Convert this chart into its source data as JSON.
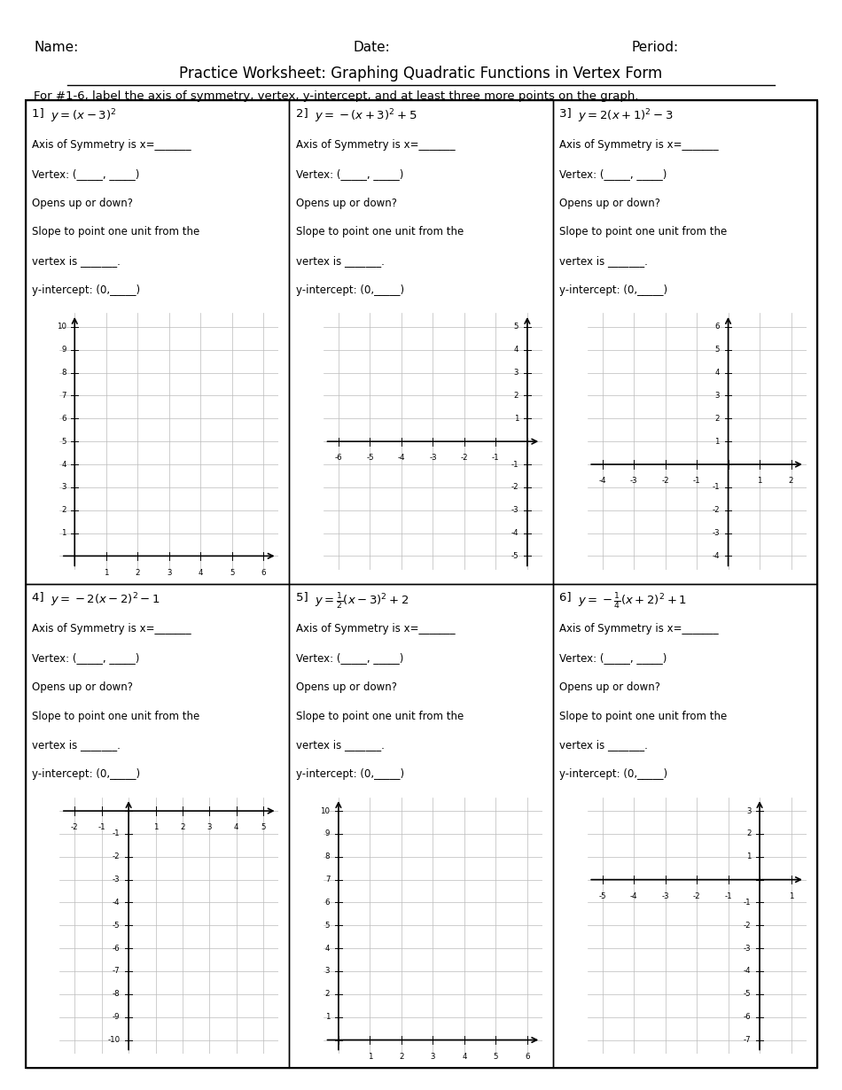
{
  "title": "Practice Worksheet: Graphing Quadratic Functions in Vertex Form",
  "header_line": "For #1-6, label the axis of symmetry, vertex, y-intercept, and at least three more points on the graph.",
  "name_label": "Name:",
  "date_label": "Date:",
  "period_label": "Period:",
  "problems": [
    {
      "number": "1]",
      "eq_plain": "y = (x - 3)",
      "eq_math": "y = (x-3)^2",
      "lines": [
        "Axis of Symmetry is x=_______",
        "Vertex: (_____, _____)",
        "Opens up or down?",
        "Slope to point one unit from the",
        "vertex is _______.  ",
        "y-intercept: (0,_____)"
      ],
      "xmin": 0,
      "xmax": 6,
      "ymin": 0,
      "ymax": 10,
      "xticks": [
        0,
        1,
        2,
        3,
        4,
        5,
        6
      ],
      "yticks": [
        0,
        1,
        2,
        3,
        4,
        5,
        6,
        7,
        8,
        9,
        10
      ]
    },
    {
      "number": "2]",
      "eq_plain": "y = -(x + 3) + 5",
      "eq_math": "y = -(x+3)^2 + 5",
      "lines": [
        "Axis of Symmetry is x=_______",
        "Vertex: (_____, _____)",
        "Opens up or down?",
        "Slope to point one unit from the",
        "vertex is _______.  ",
        "y-intercept: (0,_____)"
      ],
      "xmin": -6,
      "xmax": 0,
      "ymin": -5,
      "ymax": 5,
      "xticks": [
        -6,
        -5,
        -4,
        -3,
        -2,
        -1,
        0
      ],
      "yticks": [
        -5,
        -4,
        -3,
        -2,
        -1,
        0,
        1,
        2,
        3,
        4,
        5
      ]
    },
    {
      "number": "3]",
      "eq_plain": "y = 2(x + 1) - 3",
      "eq_math": "y = 2(x+1)^2 - 3",
      "lines": [
        "Axis of Symmetry is x=_______",
        "Vertex: (_____, _____)",
        "Opens up or down?",
        "Slope to point one unit from the",
        "vertex is _______.  ",
        "y-intercept: (0,_____)"
      ],
      "xmin": -4,
      "xmax": 2,
      "ymin": -4,
      "ymax": 6,
      "xticks": [
        -4,
        -3,
        -2,
        -1,
        0,
        1,
        2
      ],
      "yticks": [
        -4,
        -3,
        -2,
        -1,
        0,
        1,
        2,
        3,
        4,
        5,
        6
      ]
    },
    {
      "number": "4]",
      "eq_plain": "y = -2(x - 2) - 1",
      "eq_math": "y = -2(x-2)^2 - 1",
      "lines": [
        "Axis of Symmetry is x=_______",
        "Vertex: (_____, _____)",
        "Opens up or down?",
        "Slope to point one unit from the",
        "vertex is _______.  ",
        "y-intercept: (0,_____)"
      ],
      "xmin": -2,
      "xmax": 5,
      "ymin": -10,
      "ymax": 0,
      "xticks": [
        -2,
        -1,
        0,
        1,
        2,
        3,
        4,
        5
      ],
      "yticks": [
        -10,
        -9,
        -8,
        -7,
        -6,
        -5,
        -4,
        -3,
        -2,
        -1,
        0
      ]
    },
    {
      "number": "5]",
      "eq_plain": "y = 1/2(x - 3) + 2",
      "eq_math": "y = \\frac{1}{2}(x-3)^2 + 2",
      "lines": [
        "Axis of Symmetry is x=_______",
        "Vertex: (_____, _____)",
        "Opens up or down?",
        "Slope to point one unit from the",
        "vertex is _______.  ",
        "y-intercept: (0,_____)"
      ],
      "xmin": 0,
      "xmax": 6,
      "ymin": 0,
      "ymax": 10,
      "xticks": [
        0,
        1,
        2,
        3,
        4,
        5,
        6
      ],
      "yticks": [
        0,
        1,
        2,
        3,
        4,
        5,
        6,
        7,
        8,
        9,
        10
      ]
    },
    {
      "number": "6]",
      "eq_plain": "y = -1/4(x + 2) + 1",
      "eq_math": "y = -\\frac{1}{4}(x+2)^2 + 1",
      "lines": [
        "Axis of Symmetry is x=_______",
        "Vertex: (_____, _____)",
        "Opens up or down?",
        "Slope to point one unit from the",
        "vertex is _______.  ",
        "y-intercept: (0,_____)"
      ],
      "xmin": -5,
      "xmax": 1,
      "ymin": -7,
      "ymax": 3,
      "xticks": [
        -5,
        -4,
        -3,
        -2,
        -1,
        0,
        1
      ],
      "yticks": [
        -7,
        -6,
        -5,
        -4,
        -3,
        -2,
        -1,
        0,
        1,
        2,
        3
      ]
    }
  ]
}
